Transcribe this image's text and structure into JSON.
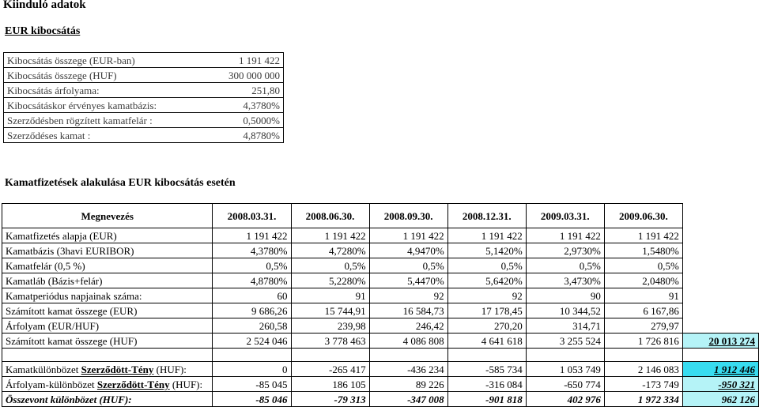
{
  "title": "Kiinduló adatok",
  "subtitle": "EUR kibocsátás",
  "info_rows": [
    {
      "label": "Kibocsátás összege (EUR-ban)",
      "value": "1 191 422"
    },
    {
      "label": "Kibocsátás összege (HUF)",
      "value": "300 000 000"
    },
    {
      "label": "Kibocsátás árfolyama:",
      "value": "251,80"
    },
    {
      "label": "Kibocsátáskor érvényes kamatbázis:",
      "value": "4,3780%"
    },
    {
      "label": "Szerződésben rögzített kamatfelár :",
      "value": "0,5000%"
    },
    {
      "label": "Szerződéses kamat :",
      "value": "4,8780%"
    }
  ],
  "section_title": "Kamatfizetések alakulása EUR kibocsátás esetén",
  "table": {
    "header": [
      "Megnevezés",
      "2008.03.31.",
      "2008.06.30.",
      "2008.09.30.",
      "2008.12.31.",
      "2009.03.31.",
      "2009.06.30."
    ],
    "rows": [
      {
        "label": "Kamatfizetés alapja (EUR)",
        "values": [
          "1 191 422",
          "1 191 422",
          "1 191 422",
          "1 191 422",
          "1 191 422",
          "1 191 422"
        ]
      },
      {
        "label": "Kamatbázis (3havi EURIBOR)",
        "values": [
          "4,3780%",
          "4,7280%",
          "4,9470%",
          "5,1420%",
          "2,9730%",
          "1,5480%"
        ]
      },
      {
        "label": "Kamatfelár (0,5 %)",
        "values": [
          "0,5%",
          "0,5%",
          "0,5%",
          "0,5%",
          "0,5%",
          "0,5%"
        ]
      },
      {
        "label": "Kamatláb (Bázis+felár)",
        "values": [
          "4,8780%",
          "5,2280%",
          "5,4470%",
          "5,6420%",
          "3,4730%",
          "2,0480%"
        ]
      },
      {
        "label": "Kamatperiódus napjainak száma:",
        "values": [
          "60",
          "91",
          "92",
          "92",
          "90",
          "91"
        ]
      },
      {
        "label": "Számított kamat összege (EUR)",
        "values": [
          "9 686,26",
          "15 744,91",
          "16 584,73",
          "17 178,45",
          "10 344,52",
          "6 167,86"
        ]
      },
      {
        "label": "Árfolyam (EUR/HUF)",
        "values": [
          "260,58",
          "239,98",
          "246,42",
          "270,20",
          "314,71",
          "279,97"
        ]
      },
      {
        "label": "Számított kamat összege (HUF)",
        "values": [
          "2 524 046",
          "3 778 463",
          "4 086 808",
          "4 641 618",
          "3 255 524",
          "1 726 816"
        ],
        "total": "20 013 274"
      }
    ],
    "diff_rows": [
      {
        "label_pre": "Kamatkülönbözet ",
        "label_bold": "Szerződött-Tény",
        "label_post": " (HUF):",
        "values": [
          "0",
          "-265 417",
          "-436 234",
          "-585 734",
          "1 053 749",
          "2 146 083"
        ],
        "total": "1 912 446"
      },
      {
        "label_pre": "Árfolyam-különbözet ",
        "label_bold": "Szerződött-Tény",
        "label_post": " (HUF):",
        "values": [
          "-85 045",
          "186 105",
          "89 226",
          "-316 084",
          "-650 774",
          "-173 749"
        ],
        "total": "-950 321"
      },
      {
        "label_pre": "Összevont különbözet (HUF):",
        "label_bold": "",
        "label_post": "",
        "values": [
          "-85 046",
          "-79 313",
          "-347 008",
          "-901 818",
          "402 976",
          "1 972 334"
        ],
        "total": "962 126"
      }
    ]
  },
  "colors": {
    "total_highlight": "#b5f3f7",
    "total_strong": "#38dcf0"
  }
}
